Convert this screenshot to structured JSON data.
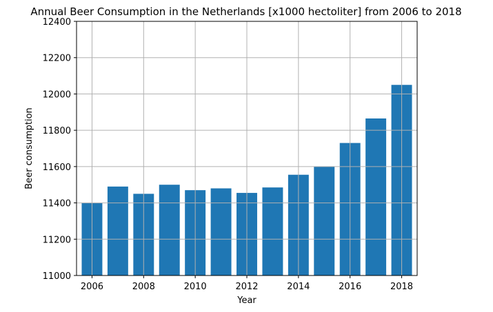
{
  "chart_data": {
    "type": "bar",
    "title": "Annual Beer Consumption in the Netherlands [x1000 hectoliter] from 2006 to 2018",
    "xlabel": "Year",
    "ylabel": "Beer consumption",
    "x": [
      2006,
      2007,
      2008,
      2009,
      2010,
      2011,
      2012,
      2013,
      2014,
      2015,
      2016,
      2017,
      2018
    ],
    "values": [
      11400,
      11490,
      11450,
      11500,
      11470,
      11480,
      11455,
      11485,
      11555,
      11600,
      11730,
      11865,
      12050
    ],
    "xticks": [
      2006,
      2008,
      2010,
      2012,
      2014,
      2016,
      2018
    ],
    "yticks": [
      11000,
      11200,
      11400,
      11600,
      11800,
      12000,
      12200,
      12400
    ],
    "xlim": [
      2005.4,
      2018.6
    ],
    "ylim": [
      11000,
      12400
    ],
    "grid": true,
    "colors": {
      "bar": "#1f77b4",
      "grid": "#b0b0b0",
      "axis": "#000000"
    }
  }
}
